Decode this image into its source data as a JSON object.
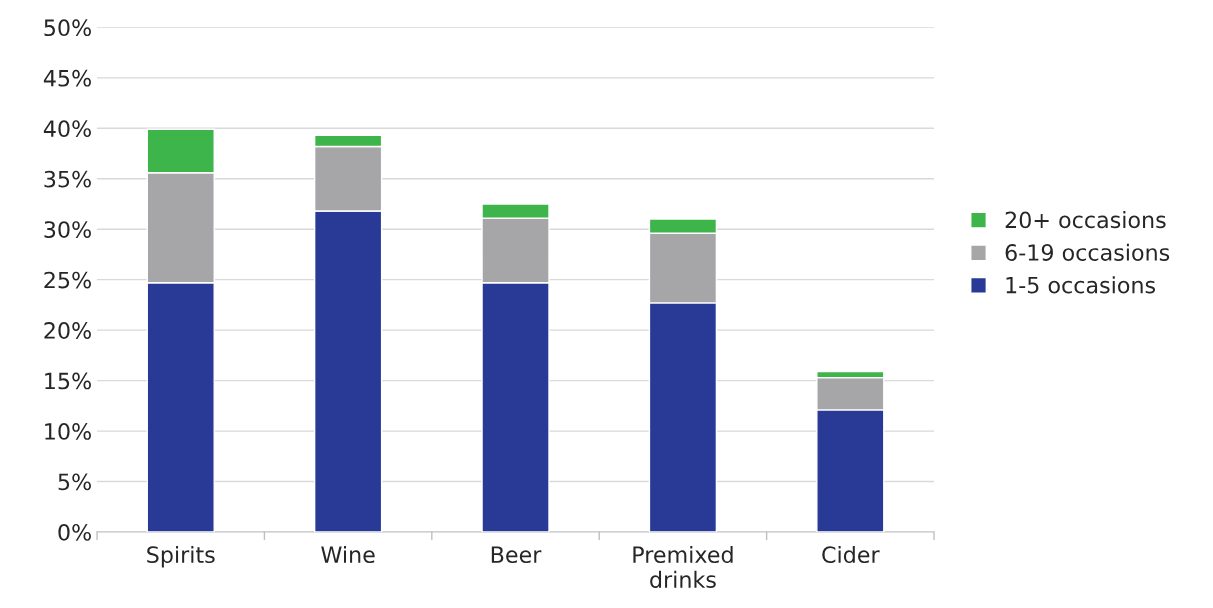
{
  "chart_data": {
    "type": "bar",
    "stacked": true,
    "categories": [
      "Spirits",
      "Wine",
      "Beer",
      "Premixed\ndrinks",
      "Cider"
    ],
    "series": [
      {
        "name": "1-5 occasions",
        "color": "#283996",
        "values": [
          24.7,
          31.8,
          24.7,
          22.7,
          12.1
        ]
      },
      {
        "name": "6-19 occasions",
        "color": "#a6a6a9",
        "values": [
          10.9,
          6.4,
          6.4,
          6.9,
          3.2
        ]
      },
      {
        "name": "20+ occasions",
        "color": "#3db54a",
        "values": [
          4.3,
          1.1,
          1.4,
          1.4,
          0.6
        ]
      }
    ],
    "ylim": [
      0,
      50
    ],
    "yticks": [
      {
        "value": 0,
        "label": "0%"
      },
      {
        "value": 5,
        "label": "5%"
      },
      {
        "value": 10,
        "label": "10%"
      },
      {
        "value": 15,
        "label": "15%"
      },
      {
        "value": 20,
        "label": "20%"
      },
      {
        "value": 25,
        "label": "25%"
      },
      {
        "value": 30,
        "label": "30%"
      },
      {
        "value": 35,
        "label": "35%"
      },
      {
        "value": 40,
        "label": "40%"
      },
      {
        "value": 45,
        "label": "45%"
      },
      {
        "value": 50,
        "label": "50%"
      }
    ],
    "grid": "y",
    "legend": "right"
  }
}
